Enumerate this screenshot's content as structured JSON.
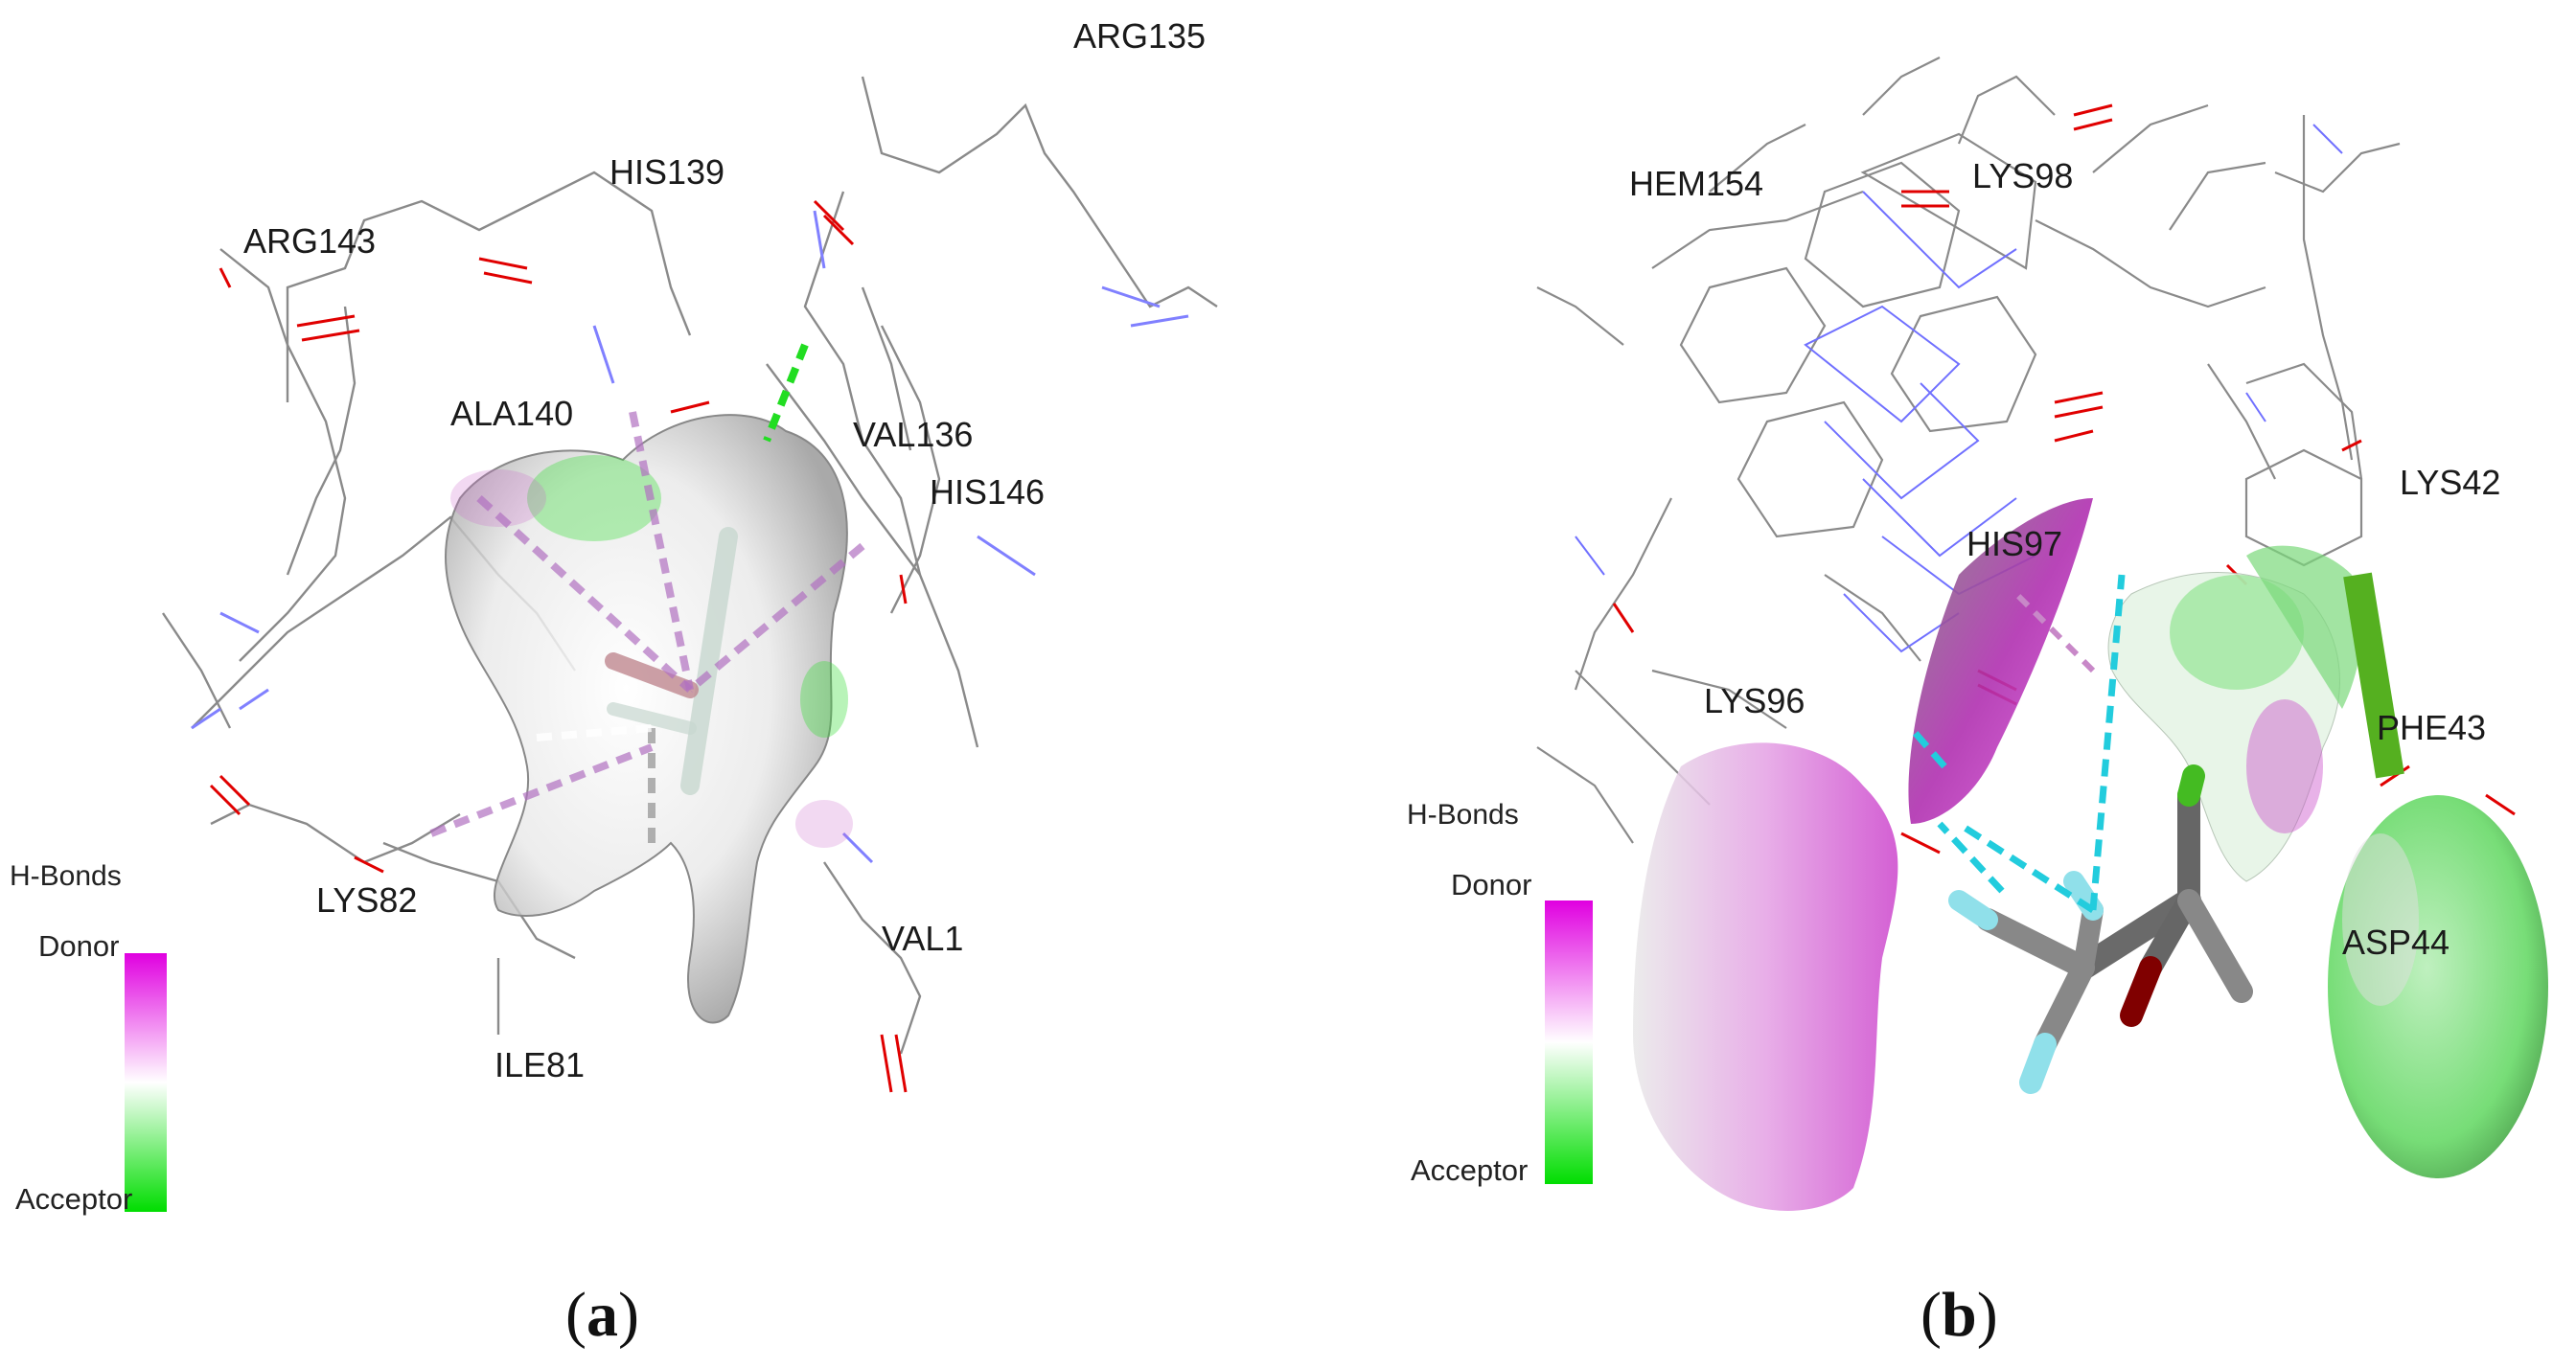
{
  "panel_a": {
    "caption_letter": "a",
    "residues": [
      "ARG135",
      "HIS139",
      "ARG143",
      "ALA140",
      "VAL136",
      "HIS146",
      "LYS82",
      "VAL1",
      "ILE81"
    ],
    "legend": {
      "title": "H-Bonds",
      "top": "Donor",
      "bottom": "Acceptor"
    }
  },
  "panel_b": {
    "caption_letter": "b",
    "residues": [
      "HEM154",
      "LYS98",
      "LYS42",
      "HIS97",
      "LYS96",
      "PHE43",
      "ASP44"
    ],
    "legend": {
      "title": "H-Bonds",
      "top": "Donor",
      "bottom": "Acceptor"
    }
  },
  "colors": {
    "donor": "#ff00ff",
    "acceptor": "#00e000",
    "hbond": "#00cfe0",
    "carbon": "#707070",
    "fluorine": "#9ae6f0",
    "oxygen": "#800000"
  }
}
